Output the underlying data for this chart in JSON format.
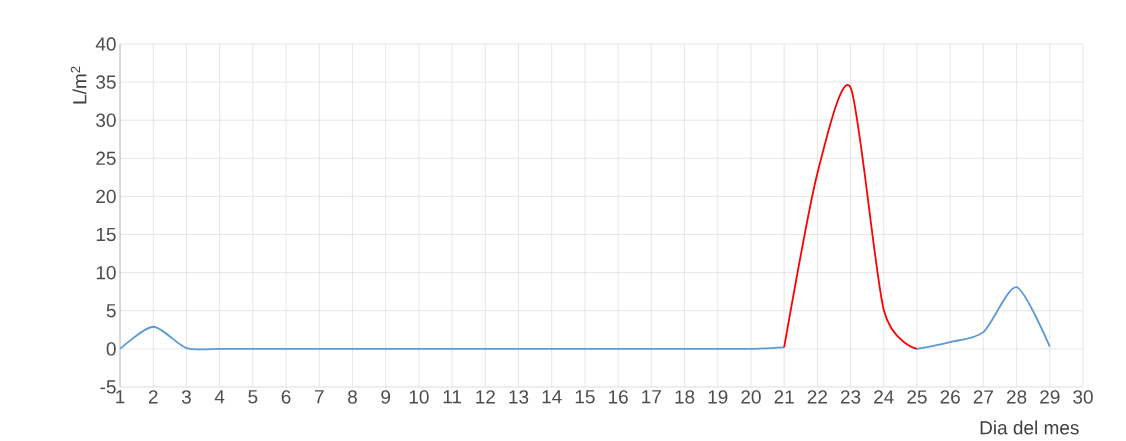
{
  "chart_data": {
    "type": "line",
    "xlabel": "Dia del mes",
    "ylabel": "L/m$^{2}$",
    "x": [
      1,
      2,
      3,
      4,
      5,
      6,
      7,
      8,
      9,
      10,
      11,
      12,
      13,
      14,
      15,
      16,
      17,
      18,
      19,
      20,
      21,
      22,
      23,
      24,
      25,
      26,
      27,
      28,
      29
    ],
    "series": [
      {
        "color": "#5b9bd5",
        "values": [
          0,
          2.9,
          0.1,
          0,
          0,
          0,
          0,
          0,
          0,
          0,
          0,
          0,
          0,
          0,
          0,
          0,
          0,
          0,
          0,
          0,
          0.2,
          null,
          null,
          null,
          0,
          0.9,
          2.2,
          8.1,
          0.3
        ]
      },
      {
        "color": "#ff0000",
        "x": [
          21,
          22,
          23,
          24,
          25
        ],
        "values": [
          0.2,
          23,
          34.3,
          5.1,
          0
        ]
      }
    ],
    "xlim": [
      1,
      30
    ],
    "xticks": [
      1,
      2,
      3,
      4,
      5,
      6,
      7,
      8,
      9,
      10,
      11,
      12,
      13,
      14,
      15,
      16,
      17,
      18,
      19,
      20,
      21,
      22,
      23,
      24,
      25,
      26,
      27,
      28,
      29,
      30
    ],
    "ylim": [
      -5,
      40
    ],
    "yticks": [
      -5,
      0,
      5,
      10,
      15,
      20,
      25,
      30,
      35,
      40
    ],
    "grid": true,
    "marker": "none",
    "line_style": "solid"
  }
}
